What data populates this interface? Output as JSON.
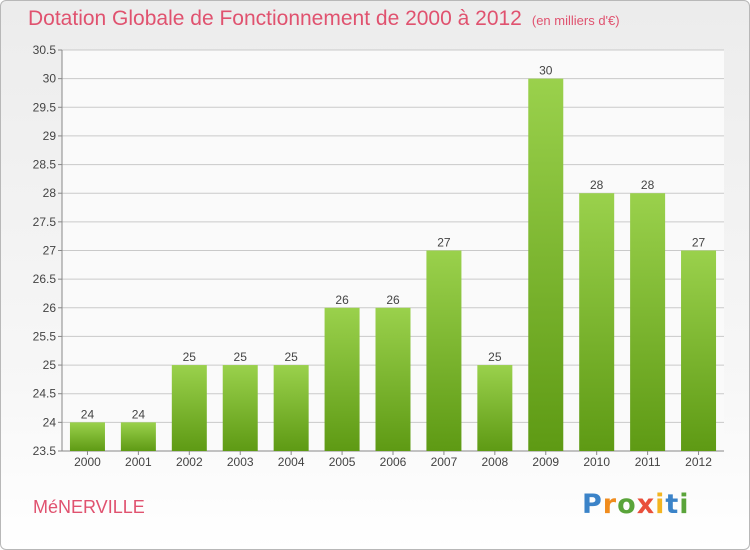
{
  "header": {
    "title": "Dotation Globale de Fonctionnement de 2000 à 2012",
    "unit": "(en milliers d'€)"
  },
  "footer": {
    "commune": "MéNERVILLE",
    "logo": [
      "P",
      "r",
      "o",
      "x",
      "i",
      "t",
      "i"
    ]
  },
  "colors": {
    "bar_top": "#9ad14c",
    "bar_bottom": "#5e9a14",
    "title": "#e0526f",
    "grid": "#c9c9c9"
  },
  "chart_data": {
    "type": "bar",
    "title": "Dotation Globale de Fonctionnement de 2000 à 2012",
    "categories": [
      "2000",
      "2001",
      "2002",
      "2003",
      "2004",
      "2005",
      "2006",
      "2007",
      "2008",
      "2009",
      "2010",
      "2011",
      "2012"
    ],
    "values": [
      24,
      24,
      25,
      25,
      25,
      26,
      26,
      27,
      25,
      30,
      28,
      28,
      27
    ],
    "data_labels": [
      "24",
      "24",
      "25",
      "25",
      "25",
      "26",
      "26",
      "27",
      "25",
      "30",
      "28",
      "28",
      "27"
    ],
    "yticks": [
      "23.5",
      "24",
      "24.5",
      "25",
      "25.5",
      "26",
      "26.5",
      "27",
      "27.5",
      "28",
      "28.5",
      "29",
      "29.5",
      "30",
      "30.5"
    ],
    "xlabel": "",
    "ylabel": "",
    "ylim": [
      23.5,
      30.5
    ],
    "grid": true,
    "legend": "none"
  }
}
